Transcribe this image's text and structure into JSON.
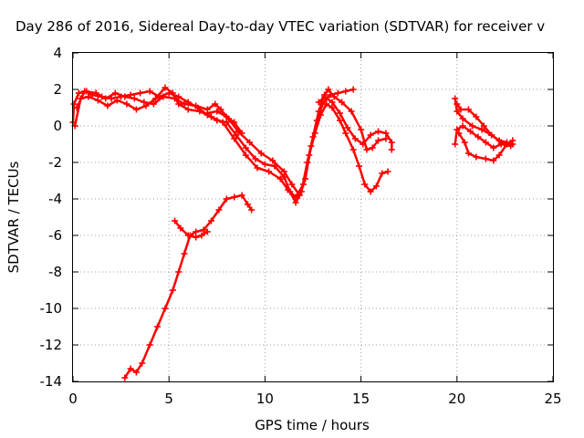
{
  "chart_data": {
    "type": "scatter",
    "title": "Day 286 of 2016, Sidereal Day-to-day VTEC variation (SDTVAR) for receiver v",
    "xlabel": "GPS time / hours",
    "ylabel": "SDTVAR / TECUs",
    "xlim": [
      0,
      25
    ],
    "ylim": [
      -14,
      4
    ],
    "xticks": [
      "0",
      "5",
      "10",
      "15",
      "20",
      "25"
    ],
    "yticks": [
      "-14",
      "-12",
      "-10",
      "-8",
      "-6",
      "-4",
      "-2",
      "0",
      "2",
      "4"
    ],
    "grid": true,
    "marker": "plus",
    "color": "#ff0000",
    "series": [
      {
        "values": [
          [
            0.0,
            0.2
          ],
          [
            0.05,
            1.2
          ],
          [
            0.3,
            1.8
          ],
          [
            0.7,
            1.9
          ],
          [
            1.0,
            1.7
          ],
          [
            1.5,
            1.6
          ],
          [
            2.0,
            1.5
          ],
          [
            2.5,
            1.6
          ],
          [
            3.0,
            1.7
          ],
          [
            3.5,
            1.8
          ],
          [
            4.0,
            1.9
          ],
          [
            4.5,
            1.6
          ],
          [
            5.0,
            1.8
          ],
          [
            5.5,
            1.6
          ],
          [
            6.0,
            1.3
          ],
          [
            6.5,
            1.0
          ],
          [
            7.0,
            0.6
          ],
          [
            7.5,
            0.3
          ],
          [
            8.0,
            0.2
          ],
          [
            8.5,
            -0.5
          ],
          [
            9.0,
            -1.2
          ],
          [
            9.5,
            -1.8
          ],
          [
            10.0,
            -2.1
          ],
          [
            10.5,
            -2.2
          ],
          [
            11.0,
            -2.8
          ],
          [
            11.3,
            -3.6
          ],
          [
            11.6,
            -4.2
          ],
          [
            11.9,
            -3.6
          ],
          [
            12.2,
            -2.0
          ],
          [
            12.5,
            -0.6
          ],
          [
            12.8,
            0.8
          ],
          [
            13.1,
            1.7
          ],
          [
            13.3,
            2.0
          ],
          [
            13.6,
            1.6
          ],
          [
            14.0,
            1.3
          ],
          [
            14.5,
            0.8
          ],
          [
            15.0,
            -0.2
          ],
          [
            15.3,
            -1.3
          ],
          [
            15.6,
            -1.2
          ],
          [
            15.9,
            -0.8
          ],
          [
            16.3,
            -0.7
          ]
        ]
      },
      {
        "values": [
          [
            0.1,
            0.0
          ],
          [
            0.4,
            1.5
          ],
          [
            0.8,
            1.6
          ],
          [
            1.3,
            1.4
          ],
          [
            1.8,
            1.1
          ],
          [
            2.3,
            1.4
          ],
          [
            2.8,
            1.2
          ],
          [
            3.3,
            0.9
          ],
          [
            3.8,
            1.1
          ],
          [
            4.3,
            1.5
          ],
          [
            4.8,
            2.1
          ],
          [
            5.2,
            1.8
          ],
          [
            5.5,
            1.2
          ],
          [
            6.0,
            0.9
          ],
          [
            6.6,
            0.8
          ],
          [
            7.2,
            0.5
          ],
          [
            7.8,
            0.2
          ],
          [
            8.4,
            -0.7
          ],
          [
            9.0,
            -1.6
          ],
          [
            9.6,
            -2.3
          ],
          [
            10.2,
            -2.5
          ],
          [
            10.8,
            -2.9
          ],
          [
            11.2,
            -3.5
          ],
          [
            11.6,
            -3.9
          ],
          [
            12.0,
            -3.2
          ],
          [
            12.3,
            -1.6
          ],
          [
            12.6,
            -0.4
          ],
          [
            12.9,
            0.6
          ],
          [
            13.2,
            1.2
          ],
          [
            13.5,
            1.0
          ],
          [
            13.9,
            0.3
          ],
          [
            14.2,
            -0.4
          ],
          [
            14.6,
            -1.3
          ],
          [
            14.9,
            -2.2
          ],
          [
            15.2,
            -3.2
          ],
          [
            15.5,
            -3.6
          ],
          [
            15.8,
            -3.3
          ],
          [
            16.1,
            -2.6
          ],
          [
            16.4,
            -2.5
          ]
        ]
      },
      {
        "values": [
          [
            0.2,
            1.0
          ],
          [
            0.6,
            1.9
          ],
          [
            1.2,
            1.8
          ],
          [
            1.7,
            1.5
          ],
          [
            2.2,
            1.8
          ],
          [
            2.7,
            1.6
          ],
          [
            3.2,
            1.5
          ],
          [
            3.7,
            1.3
          ],
          [
            4.2,
            1.2
          ],
          [
            4.7,
            1.6
          ],
          [
            5.3,
            1.5
          ],
          [
            5.8,
            1.2
          ],
          [
            6.4,
            1.1
          ],
          [
            7.0,
            0.9
          ],
          [
            7.4,
            1.2
          ],
          [
            7.7,
            0.9
          ],
          [
            8.1,
            0.4
          ],
          [
            8.6,
            -0.3
          ],
          [
            9.2,
            -0.9
          ],
          [
            9.8,
            -1.5
          ],
          [
            10.4,
            -1.9
          ],
          [
            11.0,
            -2.5
          ],
          [
            11.4,
            -3.2
          ],
          [
            11.8,
            -3.8
          ],
          [
            12.1,
            -2.9
          ],
          [
            12.4,
            -1.1
          ],
          [
            12.7,
            0.3
          ],
          [
            13.0,
            1.2
          ],
          [
            13.4,
            1.7
          ],
          [
            13.8,
            1.8
          ],
          [
            14.2,
            1.9
          ],
          [
            14.6,
            2.0
          ]
        ]
      },
      {
        "values": [
          [
            12.8,
            1.3
          ],
          [
            13.1,
            1.6
          ],
          [
            13.5,
            1.3
          ],
          [
            13.9,
            0.7
          ],
          [
            14.3,
            -0.1
          ],
          [
            14.7,
            -0.7
          ],
          [
            15.1,
            -1.0
          ],
          [
            15.5,
            -0.5
          ],
          [
            15.9,
            -0.3
          ],
          [
            16.3,
            -0.4
          ],
          [
            16.6,
            -0.9
          ],
          [
            16.6,
            -1.3
          ]
        ]
      },
      {
        "values": [
          [
            7.0,
            0.7
          ],
          [
            7.5,
            0.8
          ],
          [
            8.0,
            0.5
          ],
          [
            8.4,
            0.2
          ],
          [
            8.8,
            -0.4
          ]
        ]
      },
      {
        "values": [
          [
            2.7,
            -13.8
          ],
          [
            3.0,
            -13.3
          ],
          [
            3.3,
            -13.5
          ],
          [
            3.6,
            -13.0
          ],
          [
            4.0,
            -12.0
          ],
          [
            4.4,
            -11.0
          ],
          [
            4.8,
            -10.0
          ],
          [
            5.2,
            -9.0
          ],
          [
            5.5,
            -8.0
          ],
          [
            5.8,
            -7.0
          ],
          [
            6.1,
            -6.0
          ],
          [
            6.4,
            -5.8
          ],
          [
            6.8,
            -5.7
          ],
          [
            7.2,
            -5.2
          ],
          [
            7.6,
            -4.6
          ],
          [
            8.0,
            -4.0
          ],
          [
            8.4,
            -3.9
          ],
          [
            8.8,
            -3.8
          ],
          [
            9.1,
            -4.3
          ],
          [
            9.3,
            -4.6
          ]
        ]
      },
      {
        "values": [
          [
            5.3,
            -5.2
          ],
          [
            5.6,
            -5.6
          ],
          [
            6.0,
            -6.0
          ],
          [
            6.4,
            -6.1
          ],
          [
            6.7,
            -6.0
          ],
          [
            7.0,
            -5.8
          ]
        ]
      },
      {
        "values": [
          [
            19.9,
            1.5
          ],
          [
            20.0,
            0.8
          ],
          [
            20.3,
            0.4
          ],
          [
            20.8,
            0.0
          ],
          [
            21.3,
            -0.2
          ],
          [
            21.8,
            -0.5
          ],
          [
            22.3,
            -0.9
          ],
          [
            22.8,
            -1.0
          ]
        ]
      },
      {
        "values": [
          [
            20.0,
            1.2
          ],
          [
            20.2,
            0.9
          ],
          [
            20.6,
            0.9
          ],
          [
            21.0,
            0.5
          ],
          [
            21.4,
            0.0
          ],
          [
            21.8,
            -0.5
          ],
          [
            22.2,
            -0.8
          ],
          [
            22.6,
            -0.9
          ],
          [
            22.9,
            -1.0
          ]
        ]
      },
      {
        "values": [
          [
            19.9,
            -1.0
          ],
          [
            20.0,
            -0.2
          ],
          [
            20.3,
            0.0
          ],
          [
            20.7,
            -0.3
          ],
          [
            21.1,
            -0.6
          ],
          [
            21.5,
            -0.9
          ],
          [
            21.9,
            -1.2
          ],
          [
            22.3,
            -1.0
          ],
          [
            22.8,
            -1.1
          ]
        ]
      },
      {
        "values": [
          [
            20.1,
            -0.4
          ],
          [
            20.4,
            -0.9
          ],
          [
            20.6,
            -1.5
          ],
          [
            21.0,
            -1.7
          ],
          [
            21.5,
            -1.8
          ],
          [
            21.9,
            -1.9
          ],
          [
            22.2,
            -1.6
          ],
          [
            22.6,
            -1.0
          ],
          [
            22.9,
            -0.8
          ]
        ]
      }
    ]
  }
}
